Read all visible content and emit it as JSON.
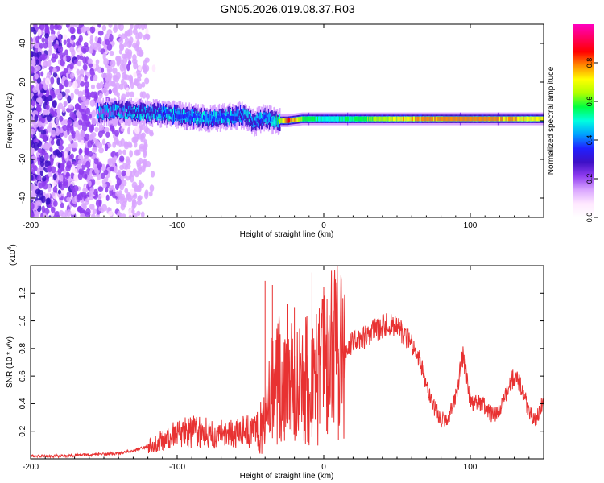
{
  "title": "GN05.2026.019.08.37.R03",
  "chart_data": [
    {
      "type": "heatmap",
      "title": "GN05.2026.019.08.37.R03",
      "xlabel": "Height of straight line (km)",
      "ylabel": "Frequency (Hz)",
      "xlim": [
        -200,
        150
      ],
      "ylim": [
        -50,
        50
      ],
      "x_ticks": [
        -200,
        -100,
        0,
        100
      ],
      "x_tick_labels": [
        "-200",
        "-100",
        "0",
        "100"
      ],
      "y_ticks": [
        -40,
        -20,
        0,
        20,
        40
      ],
      "y_tick_labels": [
        "-40",
        "-20",
        "0",
        "20",
        "40"
      ],
      "ridge": {
        "x": [
          -155,
          -140,
          -120,
          -100,
          -80,
          -65,
          -55,
          -48,
          -40,
          -35,
          -25,
          -15,
          0,
          20,
          60,
          100,
          150
        ],
        "freq_hz": [
          4,
          5,
          4,
          3,
          1,
          2,
          3,
          -1,
          2,
          0,
          0,
          1,
          1,
          1,
          1,
          1,
          1
        ],
        "amplitude": [
          0.2,
          0.25,
          0.3,
          0.35,
          0.4,
          0.35,
          0.3,
          0.3,
          0.35,
          0.45,
          0.85,
          0.6,
          0.5,
          0.55,
          0.75,
          0.8,
          0.7
        ]
      },
      "noise_region_x": [
        -200,
        -115
      ],
      "colorbar": {
        "label": "Normalized spectral amplitude",
        "range": [
          0,
          1
        ],
        "ticks": [
          0,
          0.2,
          0.4,
          0.6,
          0.8
        ],
        "tick_labels": [
          "0.0",
          "0.2",
          "0.4",
          "0.6",
          "0.8"
        ],
        "colors": [
          "#ffffff",
          "#ffe8ff",
          "#d9a5ff",
          "#8f3cf0",
          "#3d10c6",
          "#2020ff",
          "#00a0ff",
          "#00ffe0",
          "#00ff40",
          "#b0ff00",
          "#ffff00",
          "#ff8c00",
          "#ff0000",
          "#ff0060",
          "#ff00c0"
        ]
      }
    },
    {
      "type": "line",
      "xlabel": "Height of straight line (km)",
      "ylabel": "SNR (10 * v/v)",
      "scale_label": "(x10",
      "scale_exponent": "4",
      "xlim": [
        -200,
        150
      ],
      "ylim": [
        0,
        1.4
      ],
      "x_ticks": [
        -200,
        -100,
        0,
        100
      ],
      "x_tick_labels": [
        "-200",
        "-100",
        "0",
        "100"
      ],
      "y_ticks": [
        0.2,
        0.4,
        0.6,
        0.8,
        1.0,
        1.2
      ],
      "y_tick_labels": [
        "0.2",
        "0.4",
        "0.6",
        "0.8",
        "1.0",
        "1.2"
      ],
      "series": [
        {
          "name": "SNR",
          "color": "#e83232",
          "x": [
            -200,
            -180,
            -160,
            -140,
            -130,
            -120,
            -110,
            -100,
            -90,
            -80,
            -70,
            -60,
            -50,
            -45,
            -40,
            -38,
            -35,
            -30,
            -25,
            -20,
            -15,
            -10,
            -5,
            0,
            5,
            10,
            15,
            20,
            25,
            30,
            35,
            40,
            45,
            50,
            55,
            60,
            65,
            70,
            75,
            80,
            85,
            90,
            95,
            100,
            105,
            110,
            115,
            120,
            125,
            130,
            135,
            140,
            145,
            150
          ],
          "values": [
            0.02,
            0.02,
            0.03,
            0.04,
            0.06,
            0.09,
            0.13,
            0.18,
            0.2,
            0.19,
            0.18,
            0.2,
            0.2,
            0.22,
            0.25,
            0.35,
            0.5,
            0.58,
            0.52,
            0.55,
            0.6,
            0.62,
            0.6,
            0.68,
            0.75,
            0.8,
            0.78,
            0.85,
            0.85,
            0.9,
            0.93,
            0.96,
            0.97,
            0.95,
            0.9,
            0.82,
            0.72,
            0.55,
            0.38,
            0.28,
            0.3,
            0.45,
            0.75,
            0.42,
            0.4,
            0.38,
            0.32,
            0.35,
            0.5,
            0.6,
            0.52,
            0.34,
            0.28,
            0.42
          ],
          "spikes": [
            [
              -40,
              1.29
            ],
            [
              -35,
              1.26
            ],
            [
              -25,
              1.12
            ],
            [
              -20,
              1.1
            ],
            [
              -8,
              1.35
            ],
            [
              -5,
              1.05
            ],
            [
              8,
              1.3
            ],
            [
              10,
              0.14
            ],
            [
              2,
              0.2
            ]
          ]
        }
      ]
    }
  ]
}
